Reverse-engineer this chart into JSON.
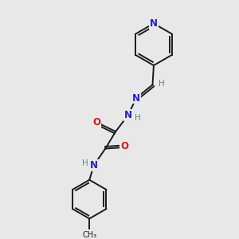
{
  "bg_color": "#e8e8e8",
  "bond_color": "#1a1a1a",
  "n_color": "#2020cc",
  "o_color": "#dd1111",
  "h_color": "#5a8a8a",
  "font_size_atoms": 8.5,
  "font_size_h": 7.5,
  "line_width": 1.4,
  "figsize": [
    3.0,
    3.0
  ],
  "dpi": 100,
  "xlim": [
    0,
    10
  ],
  "ylim": [
    0,
    10
  ]
}
